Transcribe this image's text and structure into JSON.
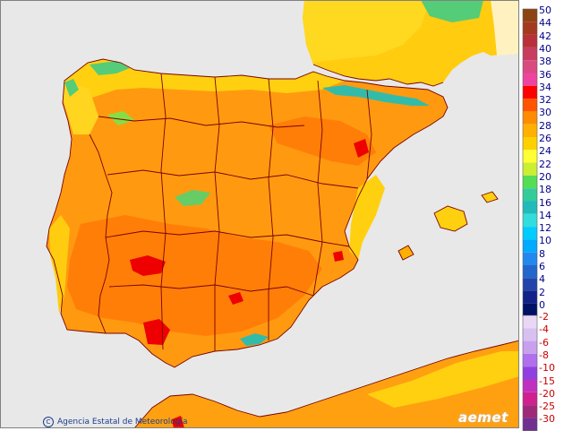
{
  "legend": {
    "positive": [
      {
        "label": "50",
        "color": "#8b4513"
      },
      {
        "label": "44",
        "color": "#a33a20"
      },
      {
        "label": "42",
        "color": "#b8303a"
      },
      {
        "label": "40",
        "color": "#c83c60"
      },
      {
        "label": "38",
        "color": "#d84a80"
      },
      {
        "label": "36",
        "color": "#ee44a0"
      },
      {
        "label": "34",
        "color": "#ff0000"
      },
      {
        "label": "32",
        "color": "#ff5500"
      },
      {
        "label": "30",
        "color": "#ff8c00"
      },
      {
        "label": "28",
        "color": "#ffb000"
      },
      {
        "label": "26",
        "color": "#ffd000"
      },
      {
        "label": "24",
        "color": "#ffff33"
      },
      {
        "label": "22",
        "color": "#ccee33"
      },
      {
        "label": "20",
        "color": "#55dd55"
      },
      {
        "label": "18",
        "color": "#33cc99"
      },
      {
        "label": "16",
        "color": "#22bbbb"
      },
      {
        "label": "14",
        "color": "#33dddd"
      },
      {
        "label": "12",
        "color": "#00ccff"
      },
      {
        "label": "10",
        "color": "#00aaff"
      },
      {
        "label": "8",
        "color": "#2288ee"
      },
      {
        "label": "6",
        "color": "#2266cc"
      },
      {
        "label": "4",
        "color": "#2244aa"
      },
      {
        "label": "2",
        "color": "#112288"
      },
      {
        "label": "0",
        "color": "#001166"
      }
    ],
    "negative": [
      {
        "label": "-2",
        "color": "#e8d8f5"
      },
      {
        "label": "-4",
        "color": "#d8c0f0"
      },
      {
        "label": "-6",
        "color": "#c8a0ee"
      },
      {
        "label": "-8",
        "color": "#b070ee"
      },
      {
        "label": "-10",
        "color": "#9040e0"
      },
      {
        "label": "-15",
        "color": "#c030c0"
      },
      {
        "label": "-20",
        "color": "#d02090"
      },
      {
        "label": "-25",
        "color": "#a02878"
      },
      {
        "label": "-30",
        "color": "#703090"
      }
    ]
  },
  "credit": "Agencia Estatal de Meteorología",
  "logo": "aemet",
  "colors": {
    "sea": "#e8e8e8",
    "land_base": "#ff9a10",
    "land_warm": "#ff7a08",
    "france": "#ffd010",
    "border": "#7a0000"
  }
}
